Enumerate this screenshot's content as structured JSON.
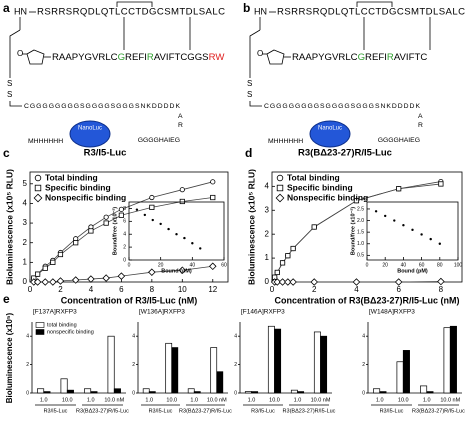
{
  "diagrams": [
    {
      "letter": "a",
      "n_term": "HN",
      "chain_b": "RSRRSRQDLQTLCCTDGCSMTDLSALC",
      "chain_a": [
        {
          "text": "RAAPYGVRLC",
          "color": "#000000"
        },
        {
          "text": "G",
          "color": "#2e9e2e"
        },
        {
          "text": "REFI",
          "color": "#000000"
        },
        {
          "text": "R",
          "color": "#2e9e2e"
        },
        {
          "text": "AVIFTCGGS",
          "color": "#000000"
        },
        {
          "text": "RW",
          "color": "#e02020"
        }
      ],
      "sulfurs": [
        "S",
        "S"
      ],
      "linker": "CGGGGGGGGSGGGGSGGGSNKDDDDK",
      "tail": [
        "A",
        "R"
      ],
      "tag": "GGGGHAIEG",
      "his": "MHHHHHH",
      "nanoluc": "NanoLuc",
      "label": "R3/I5-Luc"
    },
    {
      "letter": "b",
      "n_term": "HN",
      "chain_b": "RSRRSRQDLQTLCCTDGCSMTDLSALC",
      "chain_a": [
        {
          "text": "RAAPYGVRLC",
          "color": "#000000"
        },
        {
          "text": "G",
          "color": "#2e9e2e"
        },
        {
          "text": "REFI",
          "color": "#000000"
        },
        {
          "text": "R",
          "color": "#2e9e2e"
        },
        {
          "text": "AVIFTC",
          "color": "#000000"
        }
      ],
      "sulfurs": [
        "S",
        "S"
      ],
      "linker": "CGGGGGGGGSGGGGSGGGSNKDDDDK",
      "tail": [
        "A",
        "R"
      ],
      "tag": "GGGGHAIEG",
      "his": "MHHHHHH",
      "nanoluc": "NanoLuc",
      "label": "R3(BΔ23-27)R/I5-Luc"
    }
  ],
  "charts": [
    {
      "type": "scatter",
      "letter": "c",
      "y_label": "Bioluminescence (x10⁵ RLU)",
      "x_label": "Concentration of R3/I5-Luc (nM)",
      "xlim": [
        0,
        13
      ],
      "xticks": [
        0,
        2,
        4,
        6,
        8,
        10,
        12
      ],
      "ylim": [
        0,
        5.6
      ],
      "yticks": [
        0,
        1,
        2,
        3,
        4,
        5
      ],
      "x": [
        0.25,
        0.5,
        1,
        1.5,
        2,
        3,
        4,
        5,
        6,
        8,
        10,
        12
      ],
      "series": [
        {
          "name": "Total binding",
          "marker": "circle",
          "values": [
            0.2,
            0.4,
            0.8,
            1.1,
            1.5,
            2.2,
            2.8,
            3.3,
            3.7,
            4.3,
            4.7,
            5.1
          ]
        },
        {
          "name": "Specific binding",
          "marker": "square",
          "values": [
            0.2,
            0.4,
            0.7,
            1.0,
            1.4,
            2.0,
            2.6,
            3.0,
            3.4,
            3.8,
            4.1,
            4.3
          ]
        },
        {
          "name": "Nonspecific binding",
          "marker": "diamond",
          "values": [
            0,
            0,
            0,
            0,
            0.05,
            0.1,
            0.15,
            0.2,
            0.3,
            0.5,
            0.6,
            0.8
          ]
        }
      ],
      "inset": {
        "x_label": "Bound (pM)",
        "y_label": "Bound/free (x10⁻²)",
        "xlim": [
          0,
          60
        ],
        "xticks": [
          0,
          20,
          40,
          60
        ],
        "ylim": [
          0,
          9
        ],
        "yticks": [
          0,
          2,
          4,
          6,
          8
        ],
        "x": [
          5,
          10,
          15,
          20,
          25,
          30,
          35,
          40,
          45
        ],
        "values": [
          7.8,
          7.0,
          6.2,
          5.6,
          4.8,
          4.0,
          3.4,
          2.6,
          1.8
        ]
      }
    },
    {
      "type": "scatter",
      "letter": "d",
      "y_label": "Bioluminescence (x10⁵ RLU)",
      "x_label": "Concentration of R3(BΔ23-27)R/I5-Luc (nM)",
      "xlim": [
        0,
        9
      ],
      "xticks": [
        0,
        2,
        4,
        6,
        8
      ],
      "ylim": [
        0,
        4.6
      ],
      "yticks": [
        0,
        1,
        2,
        3,
        4
      ],
      "x": [
        0.125,
        0.25,
        0.5,
        0.75,
        1,
        2,
        4,
        6,
        8
      ],
      "series": [
        {
          "name": "Total binding",
          "marker": "circle",
          "values": [
            0.2,
            0.4,
            0.8,
            1.1,
            1.4,
            2.3,
            3.4,
            3.9,
            4.2
          ]
        },
        {
          "name": "Specific binding",
          "marker": "square",
          "values": [
            0.2,
            0.4,
            0.8,
            1.1,
            1.4,
            2.3,
            3.4,
            3.9,
            4.1
          ]
        },
        {
          "name": "Nonspecific binding",
          "marker": "diamond",
          "values": [
            0,
            0,
            0,
            0,
            0,
            0,
            0,
            0,
            0.02
          ]
        }
      ],
      "inset": {
        "x_label": "Bound (pM)",
        "y_label": "Bound/free (x10⁻²)",
        "xlim": [
          0,
          100
        ],
        "xticks": [
          0,
          20,
          40,
          60,
          80,
          100
        ],
        "ylim": [
          0.3,
          2.8
        ],
        "yticks": [
          {
            "value": 0.5,
            "label": "0.5"
          },
          {
            "value": 1,
            "label": "1.0"
          },
          {
            "value": 1.5,
            "label": "1.5"
          },
          {
            "value": 2,
            "label": "2.0"
          },
          {
            "value": 2.5,
            "label": "2.5"
          }
        ],
        "x": [
          10,
          20,
          30,
          40,
          50,
          60,
          70,
          80
        ],
        "values": [
          2.4,
          2.2,
          2.0,
          1.8,
          1.6,
          1.4,
          1.2,
          1.0
        ]
      }
    }
  ],
  "bars": {
    "type": "bar",
    "letter": "e",
    "y_label": "Bioluminescence (x10⁵)",
    "legend": [
      {
        "name": "total binding",
        "color": "#ffffff"
      },
      {
        "name": "nonspecific binding",
        "color": "#000000"
      }
    ],
    "categories": [
      "1.0",
      "10.0",
      "1.0",
      "10.0 nM"
    ],
    "group_labels": [
      "R3/I5-Luc",
      "R3(BΔ23-27)R/I5-Luc"
    ],
    "panels": [
      {
        "title": "[F137A]RXFP3",
        "ylim": [
          0,
          5
        ],
        "yticks": [
          0,
          2,
          4
        ],
        "series": [
          {
            "values": [
              0.3,
              1.0,
              0.3,
              4.0
            ]
          },
          {
            "values": [
              0.1,
              0.2,
              0.1,
              0.3
            ]
          }
        ]
      },
      {
        "title": "[W136A]RXFP3",
        "ylim": [
          0,
          5
        ],
        "yticks": [
          0,
          2,
          4
        ],
        "series": [
          {
            "values": [
              0.3,
              3.5,
              0.3,
              3.2
            ]
          },
          {
            "values": [
              0.1,
              3.2,
              0.1,
              1.5
            ]
          }
        ]
      },
      {
        "title": "[F146A]RXFP3",
        "ylim": [
          0,
          5
        ],
        "yticks": [
          0,
          2,
          4
        ],
        "series": [
          {
            "values": [
              0.1,
              4.7,
              0.2,
              4.3
            ]
          },
          {
            "values": [
              0.1,
              4.5,
              0.1,
              4.0
            ]
          }
        ]
      },
      {
        "title": "[W148A]RXFP3",
        "ylim": [
          0,
          5
        ],
        "yticks": [
          0,
          2,
          4
        ],
        "series": [
          {
            "values": [
              0.3,
              2.2,
              0.5,
              4.6
            ]
          },
          {
            "values": [
              0.1,
              3.0,
              0.1,
              4.7
            ]
          }
        ]
      }
    ]
  }
}
